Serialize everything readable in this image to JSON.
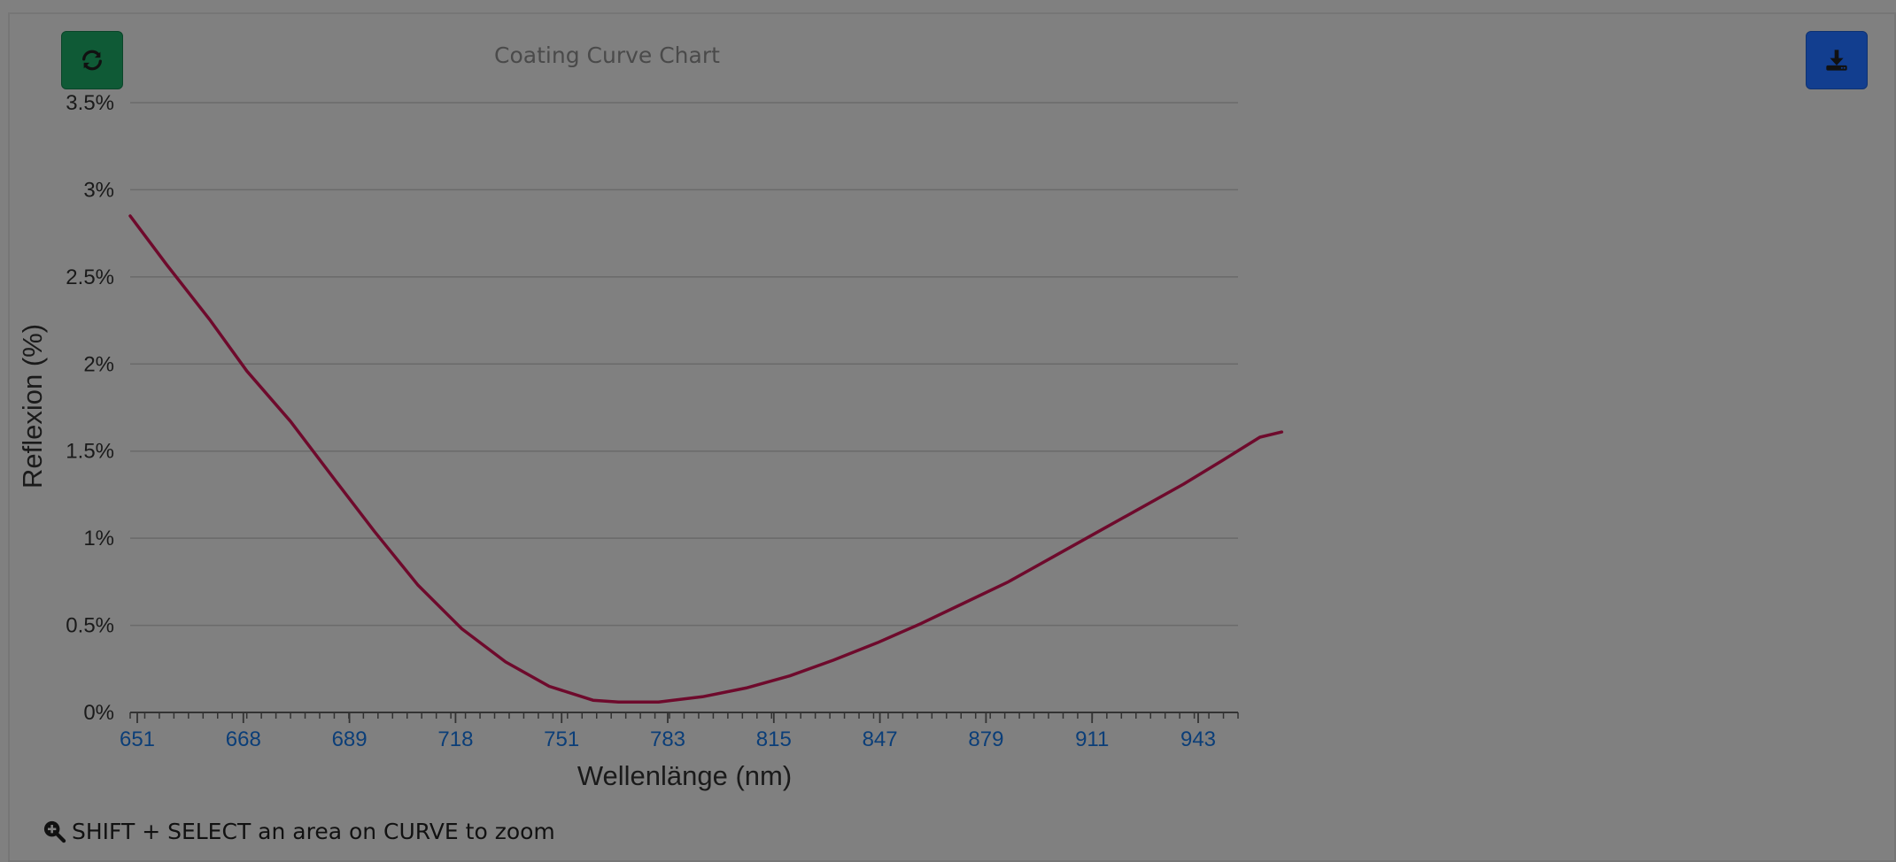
{
  "toolbar": {
    "refresh_icon": "refresh-icon",
    "download_icon": "download-icon",
    "refresh_color": "#0f5a36",
    "download_color": "#123e8f"
  },
  "hint": {
    "icon": "zoom-in-icon",
    "text": "SHIFT + SELECT an area on CURVE to zoom"
  },
  "chart_data": {
    "type": "line",
    "title": "Coating Curve Chart",
    "xlabel": "Wellenlänge (nm)",
    "ylabel": "Reflexion (%)",
    "xlim": [
      651,
      955
    ],
    "ylim": [
      0,
      3.5
    ],
    "x_ticks": [
      "651",
      "668",
      "689",
      "718",
      "751",
      "783",
      "815",
      "847",
      "879",
      "911",
      "943"
    ],
    "y_ticks": [
      "0%",
      "0.5%",
      "1%",
      "1.5%",
      "2%",
      "2.5%",
      "3%",
      "3.5%"
    ],
    "grid": true,
    "line_color": "#6e0a2c",
    "series": [
      {
        "points": [
          [
            651,
            2.85
          ],
          [
            661,
            2.57
          ],
          [
            673,
            2.25
          ],
          [
            683,
            1.96
          ],
          [
            695,
            1.67
          ],
          [
            707,
            1.34
          ],
          [
            718,
            1.04
          ],
          [
            730,
            0.73
          ],
          [
            742,
            0.48
          ],
          [
            754,
            0.29
          ],
          [
            766,
            0.15
          ],
          [
            778,
            0.07
          ],
          [
            785,
            0.06
          ],
          [
            796,
            0.06
          ],
          [
            808,
            0.09
          ],
          [
            820,
            0.14
          ],
          [
            832,
            0.21
          ],
          [
            844,
            0.3
          ],
          [
            856,
            0.4
          ],
          [
            868,
            0.51
          ],
          [
            880,
            0.63
          ],
          [
            892,
            0.75
          ],
          [
            904,
            0.89
          ],
          [
            916,
            1.03
          ],
          [
            928,
            1.17
          ],
          [
            940,
            1.31
          ],
          [
            951,
            1.45
          ],
          [
            961,
            1.58
          ],
          [
            967,
            1.61
          ]
        ]
      }
    ]
  }
}
